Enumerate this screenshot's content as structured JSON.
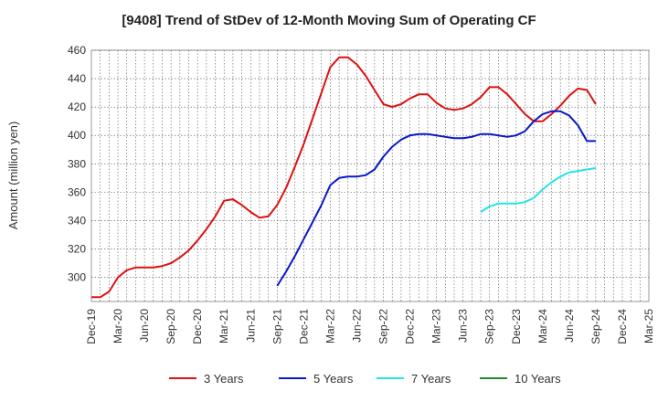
{
  "chart_data": {
    "type": "line",
    "title": "[9408]  Trend of StDev of 12-Month Moving Sum of Operating CF",
    "ylabel": "Amount (million yen)",
    "xlabel": "",
    "ylim": [
      283,
      460
    ],
    "yticks": [
      300,
      320,
      340,
      360,
      380,
      400,
      420,
      440,
      460
    ],
    "xlim": [
      "2019-12",
      "2025-03"
    ],
    "xticks": [
      "Dec-19",
      "Mar-20",
      "Jun-20",
      "Sep-20",
      "Dec-20",
      "Mar-21",
      "Jun-21",
      "Sep-21",
      "Dec-21",
      "Mar-22",
      "Jun-22",
      "Sep-22",
      "Dec-22",
      "Mar-23",
      "Jun-23",
      "Sep-23",
      "Dec-23",
      "Mar-24",
      "Jun-24",
      "Sep-24",
      "Dec-24",
      "Mar-25"
    ],
    "grid": true,
    "legend_position": "bottom",
    "series": [
      {
        "name": "3 Years",
        "color": "#dd1111",
        "x": [
          "2019-12",
          "2020-01",
          "2020-02",
          "2020-03",
          "2020-04",
          "2020-05",
          "2020-06",
          "2020-07",
          "2020-08",
          "2020-09",
          "2020-10",
          "2020-11",
          "2020-12",
          "2021-01",
          "2021-02",
          "2021-03",
          "2021-04",
          "2021-05",
          "2021-06",
          "2021-07",
          "2021-08",
          "2021-09",
          "2021-10",
          "2021-11",
          "2021-12",
          "2022-01",
          "2022-02",
          "2022-03",
          "2022-04",
          "2022-05",
          "2022-06",
          "2022-07",
          "2022-08",
          "2022-09",
          "2022-10",
          "2022-11",
          "2022-12",
          "2023-01",
          "2023-02",
          "2023-03",
          "2023-04",
          "2023-05",
          "2023-06",
          "2023-07",
          "2023-08",
          "2023-09",
          "2023-10",
          "2023-11",
          "2023-12",
          "2024-01",
          "2024-02",
          "2024-03",
          "2024-04",
          "2024-05",
          "2024-06",
          "2024-07",
          "2024-08",
          "2024-09"
        ],
        "values": [
          286,
          286,
          290,
          300,
          305,
          307,
          307,
          307,
          308,
          310,
          314,
          319,
          326,
          334,
          343,
          354,
          355,
          351,
          346,
          342,
          343,
          351,
          363,
          378,
          394,
          412,
          430,
          448,
          455,
          455,
          450,
          442,
          432,
          422,
          420,
          422,
          426,
          429,
          429,
          423,
          419,
          418,
          419,
          422,
          427,
          434,
          434,
          429,
          422,
          415,
          410,
          410,
          415,
          421,
          428,
          433,
          432,
          422
        ]
      },
      {
        "name": "5 Years",
        "color": "#0a18c8",
        "x": [
          "2021-09",
          "2021-10",
          "2021-11",
          "2021-12",
          "2022-01",
          "2022-02",
          "2022-03",
          "2022-04",
          "2022-05",
          "2022-06",
          "2022-07",
          "2022-08",
          "2022-09",
          "2022-10",
          "2022-11",
          "2022-12",
          "2023-01",
          "2023-02",
          "2023-03",
          "2023-04",
          "2023-05",
          "2023-06",
          "2023-07",
          "2023-08",
          "2023-09",
          "2023-10",
          "2023-11",
          "2023-12",
          "2024-01",
          "2024-02",
          "2024-03",
          "2024-04",
          "2024-05",
          "2024-06",
          "2024-07",
          "2024-08",
          "2024-09"
        ],
        "values": [
          294,
          304,
          315,
          327,
          339,
          351,
          365,
          370,
          371,
          371,
          372,
          376,
          385,
          392,
          397,
          400,
          401,
          401,
          400,
          399,
          398,
          398,
          399,
          401,
          401,
          400,
          399,
          400,
          403,
          410,
          415,
          417,
          417,
          414,
          407,
          396,
          396
        ]
      },
      {
        "name": "7 Years",
        "color": "#22e5e5",
        "x": [
          "2023-08",
          "2023-09",
          "2023-10",
          "2023-11",
          "2023-12",
          "2024-01",
          "2024-02",
          "2024-03",
          "2024-04",
          "2024-05",
          "2024-06",
          "2024-07",
          "2024-08",
          "2024-09"
        ],
        "values": [
          346,
          350,
          352,
          352,
          352,
          353,
          356,
          362,
          367,
          371,
          374,
          375,
          376,
          377
        ]
      },
      {
        "name": "10 Years",
        "color": "#228822",
        "x": [],
        "values": []
      }
    ]
  }
}
